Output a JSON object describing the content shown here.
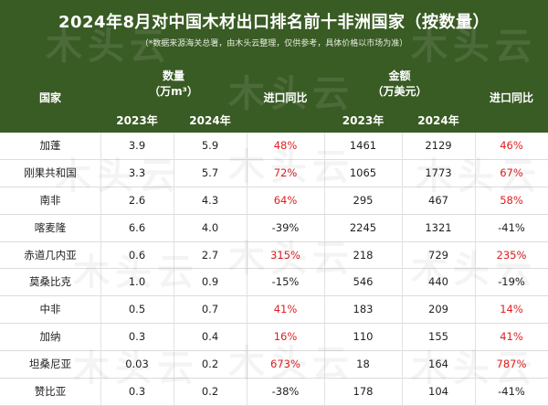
{
  "title": "2024年8月对中国木材出口排名前十非洲国家（按数量）",
  "subtitle": "（*数据来源海关总署，由木头云整理，仅供参考，具体价格以市场为准）",
  "watermark": "木头云",
  "colors": {
    "header_bg": "#395b24",
    "increase": "#e02020"
  },
  "headers": {
    "country": "国家",
    "quantity": "数量",
    "quantity_unit": "（万m³）",
    "yoy_quantity": "进口同比",
    "amount": "金额",
    "amount_unit": "（万美元）",
    "yoy_amount": "进口同比",
    "q_2023": "2023年",
    "q_2024": "2024年",
    "a_2023": "2023年",
    "a_2024": "2024年"
  },
  "rows": [
    {
      "country": "加蓬",
      "q2023": "3.9",
      "q2024": "5.9",
      "q_yoy": "48%",
      "q_up": true,
      "a2023": "1461",
      "a2024": "2129",
      "a_yoy": "46%",
      "a_up": true
    },
    {
      "country": "刚果共和国",
      "q2023": "3.3",
      "q2024": "5.7",
      "q_yoy": "72%",
      "q_up": true,
      "a2023": "1065",
      "a2024": "1773",
      "a_yoy": "67%",
      "a_up": true
    },
    {
      "country": "南非",
      "q2023": "2.6",
      "q2024": "4.3",
      "q_yoy": "64%",
      "q_up": true,
      "a2023": "295",
      "a2024": "467",
      "a_yoy": "58%",
      "a_up": true
    },
    {
      "country": "喀麦隆",
      "q2023": "6.6",
      "q2024": "4.0",
      "q_yoy": "-39%",
      "q_up": false,
      "a2023": "2245",
      "a2024": "1321",
      "a_yoy": "-41%",
      "a_up": false
    },
    {
      "country": "赤道几内亚",
      "q2023": "0.6",
      "q2024": "2.7",
      "q_yoy": "315%",
      "q_up": true,
      "a2023": "218",
      "a2024": "729",
      "a_yoy": "235%",
      "a_up": true
    },
    {
      "country": "莫桑比克",
      "q2023": "1.0",
      "q2024": "0.9",
      "q_yoy": "-15%",
      "q_up": false,
      "a2023": "546",
      "a2024": "440",
      "a_yoy": "-19%",
      "a_up": false
    },
    {
      "country": "中非",
      "q2023": "0.5",
      "q2024": "0.7",
      "q_yoy": "41%",
      "q_up": true,
      "a2023": "183",
      "a2024": "209",
      "a_yoy": "14%",
      "a_up": true
    },
    {
      "country": "加纳",
      "q2023": "0.3",
      "q2024": "0.4",
      "q_yoy": "16%",
      "q_up": true,
      "a2023": "110",
      "a2024": "155",
      "a_yoy": "41%",
      "a_up": true
    },
    {
      "country": "坦桑尼亚",
      "q2023": "0.03",
      "q2024": "0.2",
      "q_yoy": "673%",
      "q_up": true,
      "a2023": "18",
      "a2024": "164",
      "a_yoy": "787%",
      "a_up": true
    },
    {
      "country": "赞比亚",
      "q2023": "0.3",
      "q2024": "0.2",
      "q_yoy": "-38%",
      "q_up": false,
      "a2023": "178",
      "a2024": "104",
      "a_yoy": "-41%",
      "a_up": false
    }
  ]
}
